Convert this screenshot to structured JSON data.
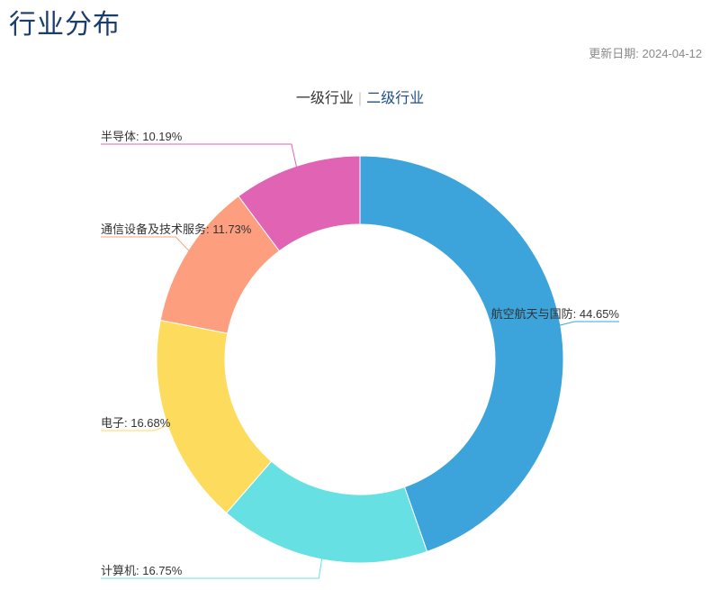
{
  "page": {
    "title": "行业分布",
    "update_date_label": "更新日期:",
    "update_date": "2024-04-12"
  },
  "tabs": {
    "level1": "一级行业",
    "separator": "|",
    "level2": "二级行业"
  },
  "chart_data": {
    "type": "pie",
    "style": "donut",
    "title": "",
    "series": [
      {
        "name": "航空航天与国防",
        "value": 44.65,
        "label": "航空航天与国防: 44.65%",
        "color": "#3ca3db"
      },
      {
        "name": "计算机",
        "value": 16.75,
        "label": "计算机: 16.75%",
        "color": "#66e0e3"
      },
      {
        "name": "电子",
        "value": 16.68,
        "label": "电子: 16.68%",
        "color": "#fddb5d"
      },
      {
        "name": "通信设备及技术服务",
        "value": 11.73,
        "label": "通信设备及技术服务: 11.73%",
        "color": "#fd9f7e"
      },
      {
        "name": "半导体",
        "value": 10.19,
        "label": "半导体: 10.19%",
        "color": "#e164b4"
      }
    ]
  }
}
